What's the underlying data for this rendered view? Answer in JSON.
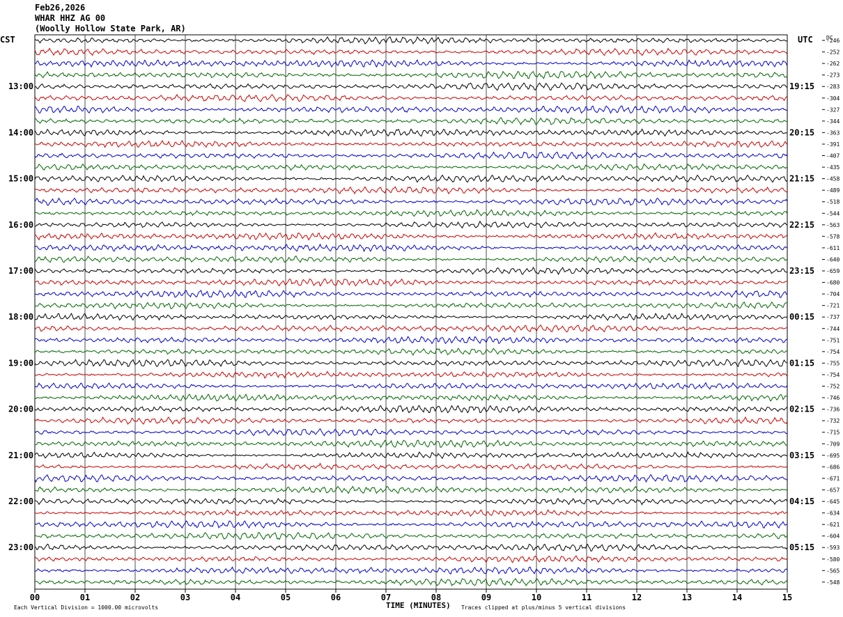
{
  "header": {
    "date": "Feb26,2026",
    "station": "WHAR HHZ AG 00",
    "location": "(Woolly Hollow State Park, AR)"
  },
  "left_timezone": "CST",
  "right_timezone": "UTC",
  "dc_label": "DC",
  "footer": {
    "scale_note": "Each Vertical Division = 1000.00 microvolts",
    "clip_note": "Traces clipped at plus/minus 5 vertical divisions",
    "xlabel": "TIME (MINUTES)"
  },
  "chart_data": {
    "type": "line",
    "title": "",
    "xlabel": "TIME (MINUTES)",
    "ylabel": "",
    "xlim": [
      0,
      15
    ],
    "x_ticks": [
      "00",
      "01",
      "02",
      "03",
      "04",
      "05",
      "06",
      "07",
      "08",
      "09",
      "10",
      "11",
      "12",
      "13",
      "14",
      "15"
    ],
    "trace_count": 48,
    "trace_minutes": 15,
    "trace_colors": [
      "#000000",
      "#cc0000",
      "#0000cc",
      "#006600"
    ],
    "left_hour_labels": [
      "13:00",
      "14:00",
      "15:00",
      "16:00",
      "17:00",
      "18:00",
      "19:00",
      "20:00",
      "21:00",
      "22:00",
      "23:00"
    ],
    "right_hour_labels": [
      "19:15",
      "20:15",
      "21:15",
      "22:15",
      "23:15",
      "00:15",
      "01:15",
      "02:15",
      "03:15",
      "04:15",
      "05:15"
    ],
    "dc_offsets": [
      "-246",
      "-252",
      "-262",
      "-273",
      "-283",
      "-304",
      "-327",
      "-344",
      "-363",
      "-391",
      "-407",
      "-435",
      "-458",
      "-489",
      "-518",
      "-544",
      "-563",
      "-578",
      "-611",
      "-640",
      "-659",
      "-680",
      "-704",
      "-721",
      "-737",
      "-744",
      "-751",
      "-754",
      "-755",
      "-754",
      "-752",
      "-746",
      "-736",
      "-732",
      "-715",
      "-709",
      "-695",
      "-686",
      "-671",
      "-657",
      "-645",
      "-634",
      "-621",
      "-604",
      "-593",
      "-580",
      "-565",
      "-548"
    ],
    "grid": true
  }
}
